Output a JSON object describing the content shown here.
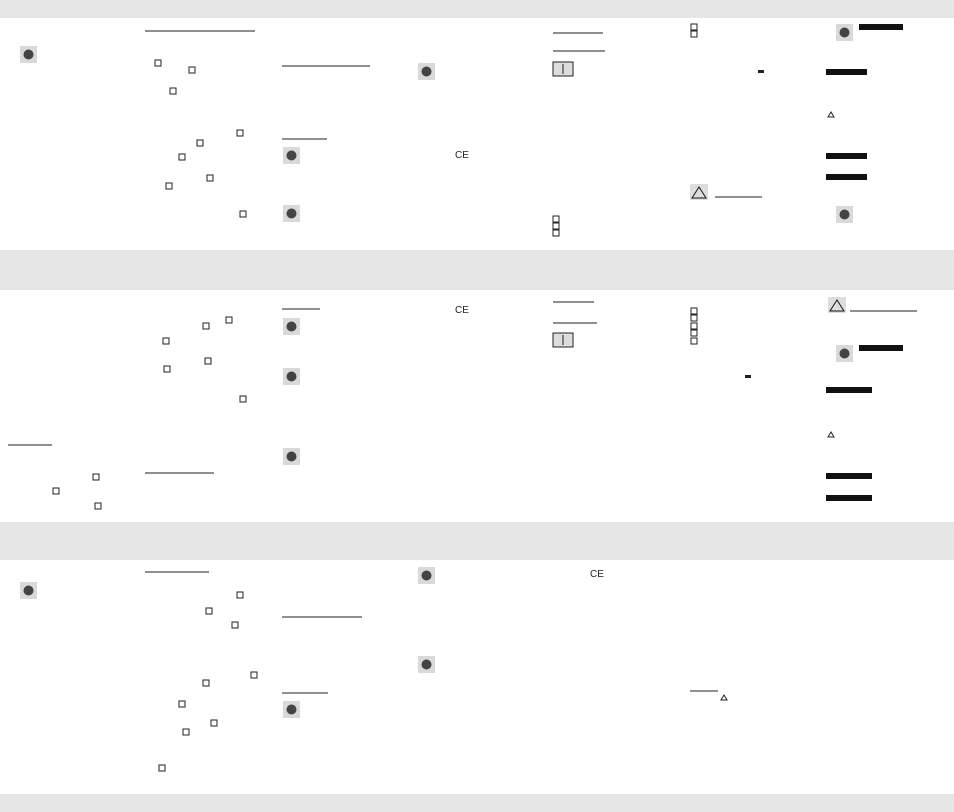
{
  "marks": [
    "CE",
    "CE",
    "CE"
  ]
}
